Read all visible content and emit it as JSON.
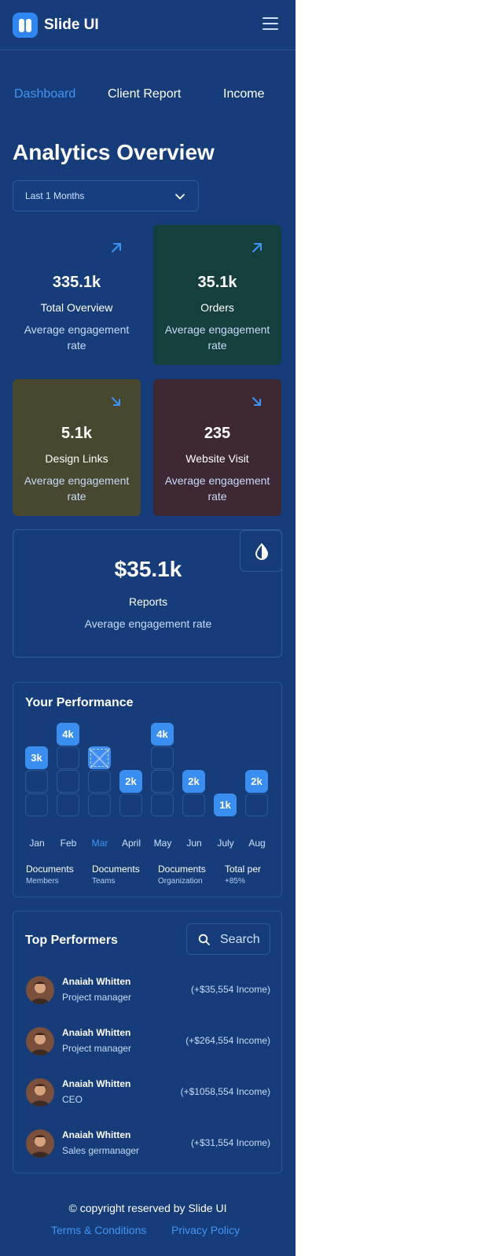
{
  "header": {
    "brand": "Slide UI",
    "logo_icon": "logo-icon",
    "menu_icon": "hamburger-icon"
  },
  "nav": {
    "tabs": [
      {
        "label": "Dashboard",
        "active": true
      },
      {
        "label": "Client Report",
        "active": false
      },
      {
        "label": "Income",
        "active": false
      }
    ]
  },
  "page": {
    "title": "Analytics Overview"
  },
  "filter": {
    "selected": "Last 1 Months",
    "icon": "chevron-down-icon"
  },
  "cards": [
    {
      "value": "335.1k",
      "label": "Total Overview",
      "sub": "Average engagement rate",
      "trend": "up",
      "icon": "arrow-up-right-icon",
      "bg": "#163c7a"
    },
    {
      "value": "35.1k",
      "label": "Orders",
      "sub": "Average engagement rate",
      "trend": "up",
      "icon": "arrow-up-right-icon",
      "bg": "#143f3d"
    },
    {
      "value": "5.1k",
      "label": "Design Links",
      "sub": "Average engagement rate",
      "trend": "down",
      "icon": "arrow-down-right-icon",
      "bg": "#47482f"
    },
    {
      "value": "235",
      "label": "Website Visit",
      "sub": "Average engagement rate",
      "trend": "down",
      "icon": "arrow-down-right-icon",
      "bg": "#3e2834"
    }
  ],
  "reports": {
    "value": "$35.1k",
    "label": "Reports",
    "sub": "Average engagement rate",
    "icon": "droplet-icon"
  },
  "performance": {
    "title": "Your Performance",
    "months": [
      {
        "label": "Jan",
        "value": "3k",
        "active": false
      },
      {
        "label": "Feb",
        "value": "4k",
        "active": false
      },
      {
        "label": "Mar",
        "value": "",
        "active": true
      },
      {
        "label": "April",
        "value": "2k",
        "active": false
      },
      {
        "label": "May",
        "value": "4k",
        "active": false
      },
      {
        "label": "Jun",
        "value": "2k",
        "active": false
      },
      {
        "label": "July",
        "value": "1k",
        "active": false
      },
      {
        "label": "Aug",
        "value": "2k",
        "active": false
      }
    ],
    "stats": [
      {
        "title": "Documents",
        "sub": "Members"
      },
      {
        "title": "Documents",
        "sub": "Teams"
      },
      {
        "title": "Documents",
        "sub": "Organization"
      },
      {
        "title": "Total per",
        "sub": "+85%"
      }
    ]
  },
  "top_performers": {
    "title": "Top Performers",
    "search_label": "Search",
    "search_icon": "search-icon",
    "rows": [
      {
        "name": "Anaiah Whitten",
        "role": "Project manager",
        "income": "(+$35,554 Income)"
      },
      {
        "name": "Anaiah Whitten",
        "role": "Project manager",
        "income": "(+$264,554 Income)"
      },
      {
        "name": "Anaiah Whitten",
        "role": "CEO",
        "income": "(+$1058,554 Income)"
      },
      {
        "name": "Anaiah Whitten",
        "role": "Sales germanager",
        "income": "(+$31,554 Income)"
      }
    ]
  },
  "footer": {
    "copyright": "© copyright reserved by Slide UI",
    "terms": "Terms & Conditions",
    "privacy": "Privacy Policy"
  },
  "colors": {
    "background": "#163c7a",
    "accent": "#3f95f6",
    "chip": "#3a8ef0"
  }
}
